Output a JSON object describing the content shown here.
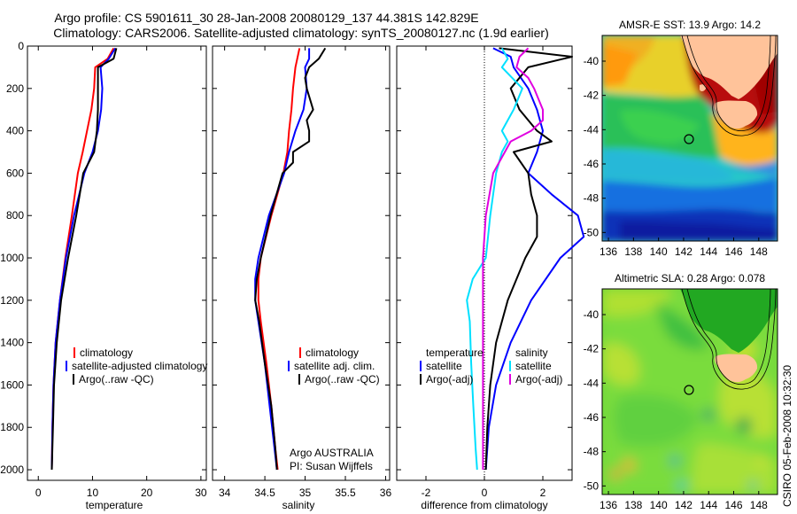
{
  "header": {
    "title_line1": "Argo profile: CS 5901611_30 28-Jan-2008 20080129_137 44.381S 142.829E",
    "title_line2": "Climatology: CARS2006. Satellite-adjusted climatology: synTS_20080127.nc (1.9d earlier)"
  },
  "side_note": "CSIRO 05-Feb-2008 10:32:30",
  "colors": {
    "climatology": "#ff0000",
    "satellite": "#0000ff",
    "argo": "#000000",
    "satellite_salinity": "#00e0ff",
    "argo_salinity": "#e000e0"
  },
  "chart_data": [
    {
      "type": "line",
      "id": "temperature",
      "xlabel": "temperature",
      "ylabel": "",
      "xlim": [
        -2,
        31
      ],
      "ylim": [
        2050,
        0
      ],
      "xticks": [
        0,
        10,
        20,
        30
      ],
      "yticks": [
        0,
        200,
        400,
        600,
        800,
        1000,
        1200,
        1400,
        1600,
        1800,
        2000
      ],
      "legend": {
        "position": "lower-right",
        "entries": [
          "climatology",
          "satellite-adjusted climatology",
          "Argo(..raw -QC)"
        ]
      },
      "series": [
        {
          "name": "climatology",
          "color": "#ff0000",
          "depth": [
            10,
            60,
            100,
            200,
            300,
            400,
            500,
            600,
            800,
            1000,
            1200,
            1400,
            1600,
            1800,
            2000
          ],
          "values": [
            13.9,
            12.8,
            10.5,
            10.3,
            9.8,
            9.0,
            8.2,
            7.3,
            6.2,
            5.0,
            4.0,
            3.2,
            2.8,
            2.6,
            2.5
          ]
        },
        {
          "name": "satellite-adjusted climatology",
          "color": "#0000ff",
          "depth": [
            10,
            60,
            100,
            200,
            300,
            400,
            500,
            600,
            800,
            1000,
            1200,
            1400,
            1600,
            1800,
            2000
          ],
          "values": [
            14.2,
            13.0,
            11.5,
            11.8,
            11.6,
            11.0,
            10.0,
            8.5,
            6.6,
            5.1,
            4.0,
            3.2,
            2.8,
            2.6,
            2.5
          ]
        },
        {
          "name": "Argo(..raw -QC)",
          "color": "#000000",
          "depth": [
            10,
            60,
            100,
            200,
            300,
            400,
            500,
            600,
            800,
            1000,
            1200,
            1400,
            1600,
            1800,
            2000
          ],
          "values": [
            14.4,
            13.9,
            11.0,
            11.0,
            11.0,
            10.8,
            10.3,
            8.3,
            7.0,
            5.5,
            4.2,
            3.4,
            2.9,
            2.7,
            2.5
          ]
        }
      ]
    },
    {
      "type": "line",
      "id": "salinity",
      "xlabel": "salinity",
      "ylabel": "",
      "xlim": [
        33.85,
        36.05
      ],
      "ylim": [
        2050,
        0
      ],
      "xticks": [
        34,
        34.5,
        35,
        35.5,
        36
      ],
      "legend": {
        "position": "lower-right",
        "entries": [
          "climatology",
          "satellite adj. clim.",
          "Argo(..raw -QC)"
        ]
      },
      "annotations": [
        "Argo AUSTRALIA",
        "PI: Susan Wijffels"
      ],
      "series": [
        {
          "name": "climatology",
          "color": "#ff0000",
          "depth": [
            10,
            100,
            200,
            300,
            400,
            500,
            600,
            800,
            1000,
            1100,
            1200,
            1300,
            1500,
            1700,
            1900,
            2000
          ],
          "values": [
            34.93,
            34.88,
            34.85,
            34.83,
            34.8,
            34.78,
            34.73,
            34.58,
            34.45,
            34.42,
            34.42,
            34.45,
            34.52,
            34.58,
            34.63,
            34.66
          ]
        },
        {
          "name": "satellite adj. clim.",
          "color": "#0000ff",
          "depth": [
            10,
            60,
            100,
            200,
            300,
            400,
            500,
            600,
            800,
            1000,
            1100,
            1200,
            1300,
            1500,
            1700,
            1900,
            2000
          ],
          "values": [
            35.05,
            35.05,
            35.0,
            35.02,
            34.98,
            34.88,
            34.8,
            34.74,
            34.55,
            34.42,
            34.38,
            34.38,
            34.42,
            34.5,
            34.56,
            34.62,
            34.65
          ]
        },
        {
          "name": "Argo(..raw -QC)",
          "color": "#000000",
          "depth": [
            10,
            60,
            100,
            150,
            200,
            300,
            350,
            400,
            450,
            500,
            550,
            600,
            800,
            1000,
            1100,
            1200,
            1300,
            1500,
            1700,
            1900,
            2000
          ],
          "values": [
            35.25,
            35.17,
            35.05,
            35.0,
            35.02,
            35.1,
            35.02,
            35.05,
            35.05,
            34.85,
            34.85,
            34.72,
            34.57,
            34.45,
            34.4,
            34.38,
            34.43,
            34.5,
            34.58,
            34.63,
            34.65
          ]
        }
      ]
    },
    {
      "type": "line",
      "id": "difference",
      "xlabel": "difference from climatology",
      "ylabel": "",
      "xlim": [
        -3,
        3
      ],
      "ylim": [
        2050,
        0
      ],
      "xticks": [
        -2,
        0,
        2
      ],
      "reference_line": 0,
      "legend": {
        "position": "lower-center",
        "groups": [
          {
            "title": "temperature",
            "entries": [
              "satellite",
              "Argo(-adj)"
            ]
          },
          {
            "title": "salinity",
            "entries": [
              "satellite",
              "Argo(-adj)"
            ]
          }
        ]
      },
      "series": [
        {
          "name": "temperature satellite",
          "color": "#0000ff",
          "depth": [
            10,
            50,
            100,
            200,
            300,
            400,
            500,
            600,
            700,
            800,
            900,
            950,
            1000,
            1200,
            1400,
            1600,
            1800,
            2000
          ],
          "values": [
            0.3,
            0.9,
            1.0,
            1.5,
            1.8,
            2.0,
            1.8,
            1.5,
            2.3,
            3.2,
            3.4,
            3.0,
            2.6,
            1.6,
            0.9,
            0.4,
            0.15,
            0.05
          ]
        },
        {
          "name": "temperature Argo(-adj)",
          "color": "#000000",
          "depth": [
            10,
            50,
            100,
            200,
            300,
            400,
            450,
            500,
            600,
            700,
            800,
            900,
            1000,
            1200,
            1400,
            1600,
            1800,
            2000
          ],
          "values": [
            0.5,
            3.0,
            1.5,
            0.9,
            1.2,
            1.8,
            2.3,
            1.0,
            1.5,
            1.6,
            1.8,
            1.8,
            1.4,
            0.8,
            0.4,
            0.2,
            0.1,
            0.05
          ]
        },
        {
          "name": "salinity satellite",
          "color": "#00e0ff",
          "depth": [
            10,
            60,
            100,
            200,
            300,
            400,
            450,
            500,
            600,
            800,
            1000,
            1100,
            1200,
            1300,
            1500,
            1700,
            1900,
            2000
          ],
          "values": [
            0.6,
            0.8,
            0.6,
            1.3,
            1.0,
            0.6,
            0.8,
            0.6,
            0.4,
            0.2,
            0.05,
            -0.4,
            -0.6,
            -0.5,
            -0.45,
            -0.38,
            -0.3,
            -0.25
          ]
        },
        {
          "name": "salinity Argo(-adj)",
          "color": "#e000e0",
          "depth": [
            10,
            50,
            100,
            150,
            200,
            300,
            350,
            400,
            450,
            500,
            600,
            800,
            1000,
            1100,
            1200,
            1300,
            1500,
            1700,
            1900,
            2000
          ],
          "values": [
            1.5,
            1.2,
            1.1,
            1.5,
            1.7,
            2.0,
            2.0,
            1.6,
            0.9,
            0.7,
            0.3,
            0.05,
            -0.05,
            -0.05,
            -0.05,
            -0.05,
            -0.05,
            -0.05,
            -0.05,
            -0.05
          ]
        }
      ]
    },
    {
      "type": "heatmap",
      "id": "sst-map",
      "title": "AMSR-E SST: 13.9 Argo: 14.2",
      "xlim": [
        135.5,
        149.5
      ],
      "ylim": [
        -50.5,
        -38.5
      ],
      "xticks": [
        136,
        138,
        140,
        142,
        144,
        146,
        148
      ],
      "yticks": [
        -40,
        -42,
        -44,
        -46,
        -48,
        -50
      ],
      "float_position": [
        142.829,
        -44.381
      ]
    },
    {
      "type": "heatmap",
      "id": "sla-map",
      "title": "Altimetric SLA: 0.28 Argo: 0.078",
      "xlim": [
        135.5,
        149.5
      ],
      "ylim": [
        -50.5,
        -38.5
      ],
      "xticks": [
        136,
        138,
        140,
        142,
        144,
        146,
        148
      ],
      "yticks": [
        -40,
        -42,
        -44,
        -46,
        -48,
        -50
      ],
      "float_position": [
        142.829,
        -44.381
      ]
    }
  ]
}
